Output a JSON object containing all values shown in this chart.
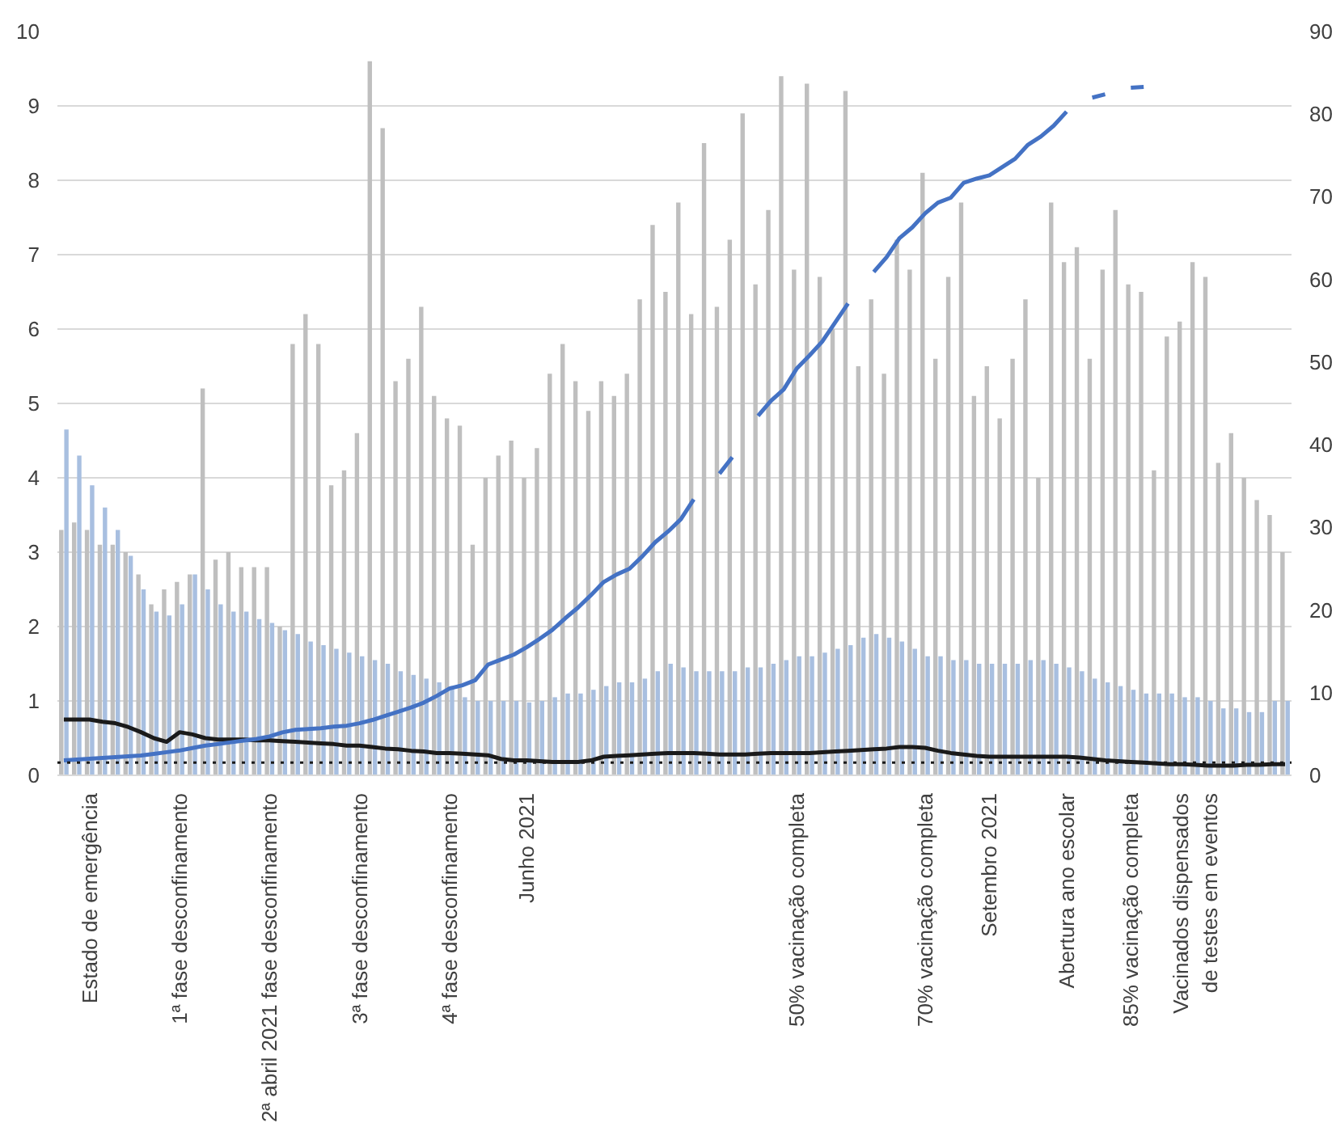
{
  "chart_data": {
    "type": "bar",
    "categories": [
      null,
      null,
      "Estado de emergência",
      null,
      null,
      null,
      null,
      null,
      null,
      "1ª fase desconfinamento",
      null,
      null,
      null,
      null,
      null,
      null,
      "2ª abril 2021 fase desconfinamento",
      null,
      null,
      null,
      null,
      null,
      null,
      "3ª fase desconfinamento",
      null,
      null,
      null,
      null,
      null,
      null,
      "4ª fase desconfinamento",
      null,
      null,
      null,
      null,
      null,
      "Junho 2021",
      null,
      null,
      null,
      null,
      null,
      null,
      null,
      null,
      null,
      null,
      null,
      null,
      null,
      null,
      null,
      null,
      null,
      null,
      null,
      null,
      "50% vacinação completa",
      null,
      null,
      null,
      null,
      null,
      null,
      null,
      null,
      null,
      "70% vacinação completa",
      null,
      null,
      null,
      null,
      "Setembro 2021",
      null,
      null,
      null,
      null,
      null,
      "Abertura ano escolar",
      null,
      null,
      null,
      null,
      "85% vacinação completa",
      null,
      null,
      null,
      null,
      "Vacinados dispensados\nde testes em eventos",
      null,
      null,
      null,
      null,
      null,
      null,
      null
    ],
    "series": [
      {
        "color": "#bfbfbf",
        "values": [
          3.3,
          3.4,
          3.3,
          3.1,
          3.1,
          3.0,
          2.7,
          2.3,
          2.5,
          2.6,
          2.7,
          5.2,
          2.9,
          3.0,
          2.8,
          2.8,
          2.8,
          2.0,
          5.8,
          6.2,
          5.8,
          3.9,
          4.1,
          4.6,
          9.6,
          8.7,
          5.3,
          5.6,
          6.3,
          5.1,
          4.8,
          4.7,
          3.1,
          4.0,
          4.3,
          4.5,
          4.0,
          4.4,
          5.4,
          5.8,
          5.3,
          4.9,
          5.3,
          5.1,
          5.4,
          6.4,
          7.4,
          6.5,
          7.7,
          6.2,
          8.5,
          6.3,
          7.2,
          8.9,
          6.6,
          7.6,
          9.4,
          6.8,
          9.3,
          6.7,
          6.0,
          9.2,
          5.5,
          6.4,
          5.4,
          7.2,
          6.8,
          8.1,
          5.6,
          6.7,
          7.7,
          5.1,
          5.5,
          4.8,
          5.6,
          6.4,
          4.0,
          7.7,
          6.9,
          7.1,
          5.6,
          6.8,
          7.6,
          6.6,
          6.5,
          4.1,
          5.9,
          6.1,
          6.9,
          6.7,
          4.2,
          4.6,
          4.0,
          3.7,
          3.5,
          3.0
        ]
      },
      {
        "color": "#a8bfe0",
        "values": [
          4.65,
          4.3,
          3.9,
          3.6,
          3.3,
          2.95,
          2.5,
          2.2,
          2.15,
          2.3,
          2.7,
          2.5,
          2.3,
          2.2,
          2.2,
          2.1,
          2.05,
          1.95,
          1.9,
          1.8,
          1.75,
          1.7,
          1.65,
          1.6,
          1.55,
          1.5,
          1.4,
          1.35,
          1.3,
          1.25,
          1.2,
          1.05,
          1.0,
          1.0,
          1.0,
          1.0,
          0.98,
          1.0,
          1.05,
          1.1,
          1.1,
          1.15,
          1.2,
          1.25,
          1.25,
          1.3,
          1.4,
          1.5,
          1.45,
          1.4,
          1.4,
          1.4,
          1.4,
          1.45,
          1.45,
          1.5,
          1.55,
          1.6,
          1.6,
          1.65,
          1.7,
          1.75,
          1.85,
          1.9,
          1.85,
          1.8,
          1.7,
          1.6,
          1.6,
          1.55,
          1.55,
          1.5,
          1.5,
          1.5,
          1.5,
          1.55,
          1.55,
          1.5,
          1.45,
          1.4,
          1.3,
          1.25,
          1.2,
          1.15,
          1.1,
          1.1,
          1.1,
          1.05,
          1.05,
          1.0,
          0.9,
          0.9,
          0.85,
          0.85,
          1.0,
          1.0
        ]
      },
      {
        "type": "line",
        "color": "#1a1a1a",
        "values": [
          0.75,
          0.75,
          0.75,
          0.72,
          0.7,
          0.65,
          0.58,
          0.5,
          0.45,
          0.58,
          0.55,
          0.5,
          0.48,
          0.48,
          0.48,
          0.47,
          0.47,
          0.46,
          0.45,
          0.44,
          0.43,
          0.42,
          0.4,
          0.4,
          0.38,
          0.36,
          0.35,
          0.33,
          0.32,
          0.3,
          0.3,
          0.29,
          0.28,
          0.27,
          0.22,
          0.2,
          0.2,
          0.19,
          0.18,
          0.18,
          0.18,
          0.2,
          0.25,
          0.26,
          0.27,
          0.28,
          0.29,
          0.3,
          0.3,
          0.3,
          0.29,
          0.28,
          0.28,
          0.28,
          0.29,
          0.3,
          0.3,
          0.3,
          0.3,
          0.31,
          0.32,
          0.33,
          0.34,
          0.35,
          0.36,
          0.38,
          0.38,
          0.37,
          0.33,
          0.3,
          0.28,
          0.26,
          0.25,
          0.25,
          0.25,
          0.25,
          0.25,
          0.25,
          0.25,
          0.24,
          0.22,
          0.2,
          0.19,
          0.18,
          0.17,
          0.16,
          0.15,
          0.15,
          0.14,
          0.13,
          0.13,
          0.13,
          0.14,
          0.14,
          0.15,
          0.15
        ]
      },
      {
        "type": "line",
        "axis": "y2",
        "color": "#4472c4",
        "values": [
          1.8,
          1.9,
          2.0,
          2.1,
          2.2,
          2.3,
          2.4,
          2.6,
          2.8,
          3.0,
          3.3,
          3.6,
          3.8,
          4.0,
          4.2,
          4.4,
          4.7,
          5.2,
          5.5,
          5.6,
          5.7,
          5.9,
          6.0,
          6.3,
          6.7,
          7.2,
          7.7,
          8.2,
          8.8,
          9.6,
          10.5,
          10.9,
          11.5,
          13.4,
          14.0,
          14.6,
          15.5,
          16.5,
          17.6,
          19.0,
          20.3,
          21.8,
          23.4,
          24.3,
          25.0,
          26.5,
          28.2,
          29.5,
          31.0,
          33.4,
          null,
          36.5,
          38.5,
          null,
          43.5,
          45.3,
          46.7,
          49.2,
          50.8,
          52.5,
          54.8,
          57.1,
          null,
          60.9,
          62.7,
          65.0,
          66.3,
          68.0,
          69.3,
          69.9,
          71.7,
          72.2,
          72.6,
          73.6,
          74.6,
          76.3,
          77.3,
          78.6,
          80.3,
          null,
          82.0,
          82.4,
          null,
          83.2,
          83.3,
          null,
          null,
          null,
          null,
          null,
          null,
          null,
          null,
          null,
          null,
          null
        ]
      }
    ],
    "ref_lines": [
      {
        "axis": "y",
        "value": 0.17,
        "color": "#1a1a1a",
        "line_style": "dotted"
      }
    ],
    "ylim": [
      0,
      10
    ],
    "yticks": [
      0,
      1,
      2,
      3,
      4,
      5,
      6,
      7,
      8,
      9,
      10
    ],
    "y2lim": [
      0,
      90
    ],
    "y2ticks": [
      0,
      10,
      20,
      30,
      40,
      50,
      60,
      70,
      80,
      90
    ],
    "grid": "y"
  }
}
